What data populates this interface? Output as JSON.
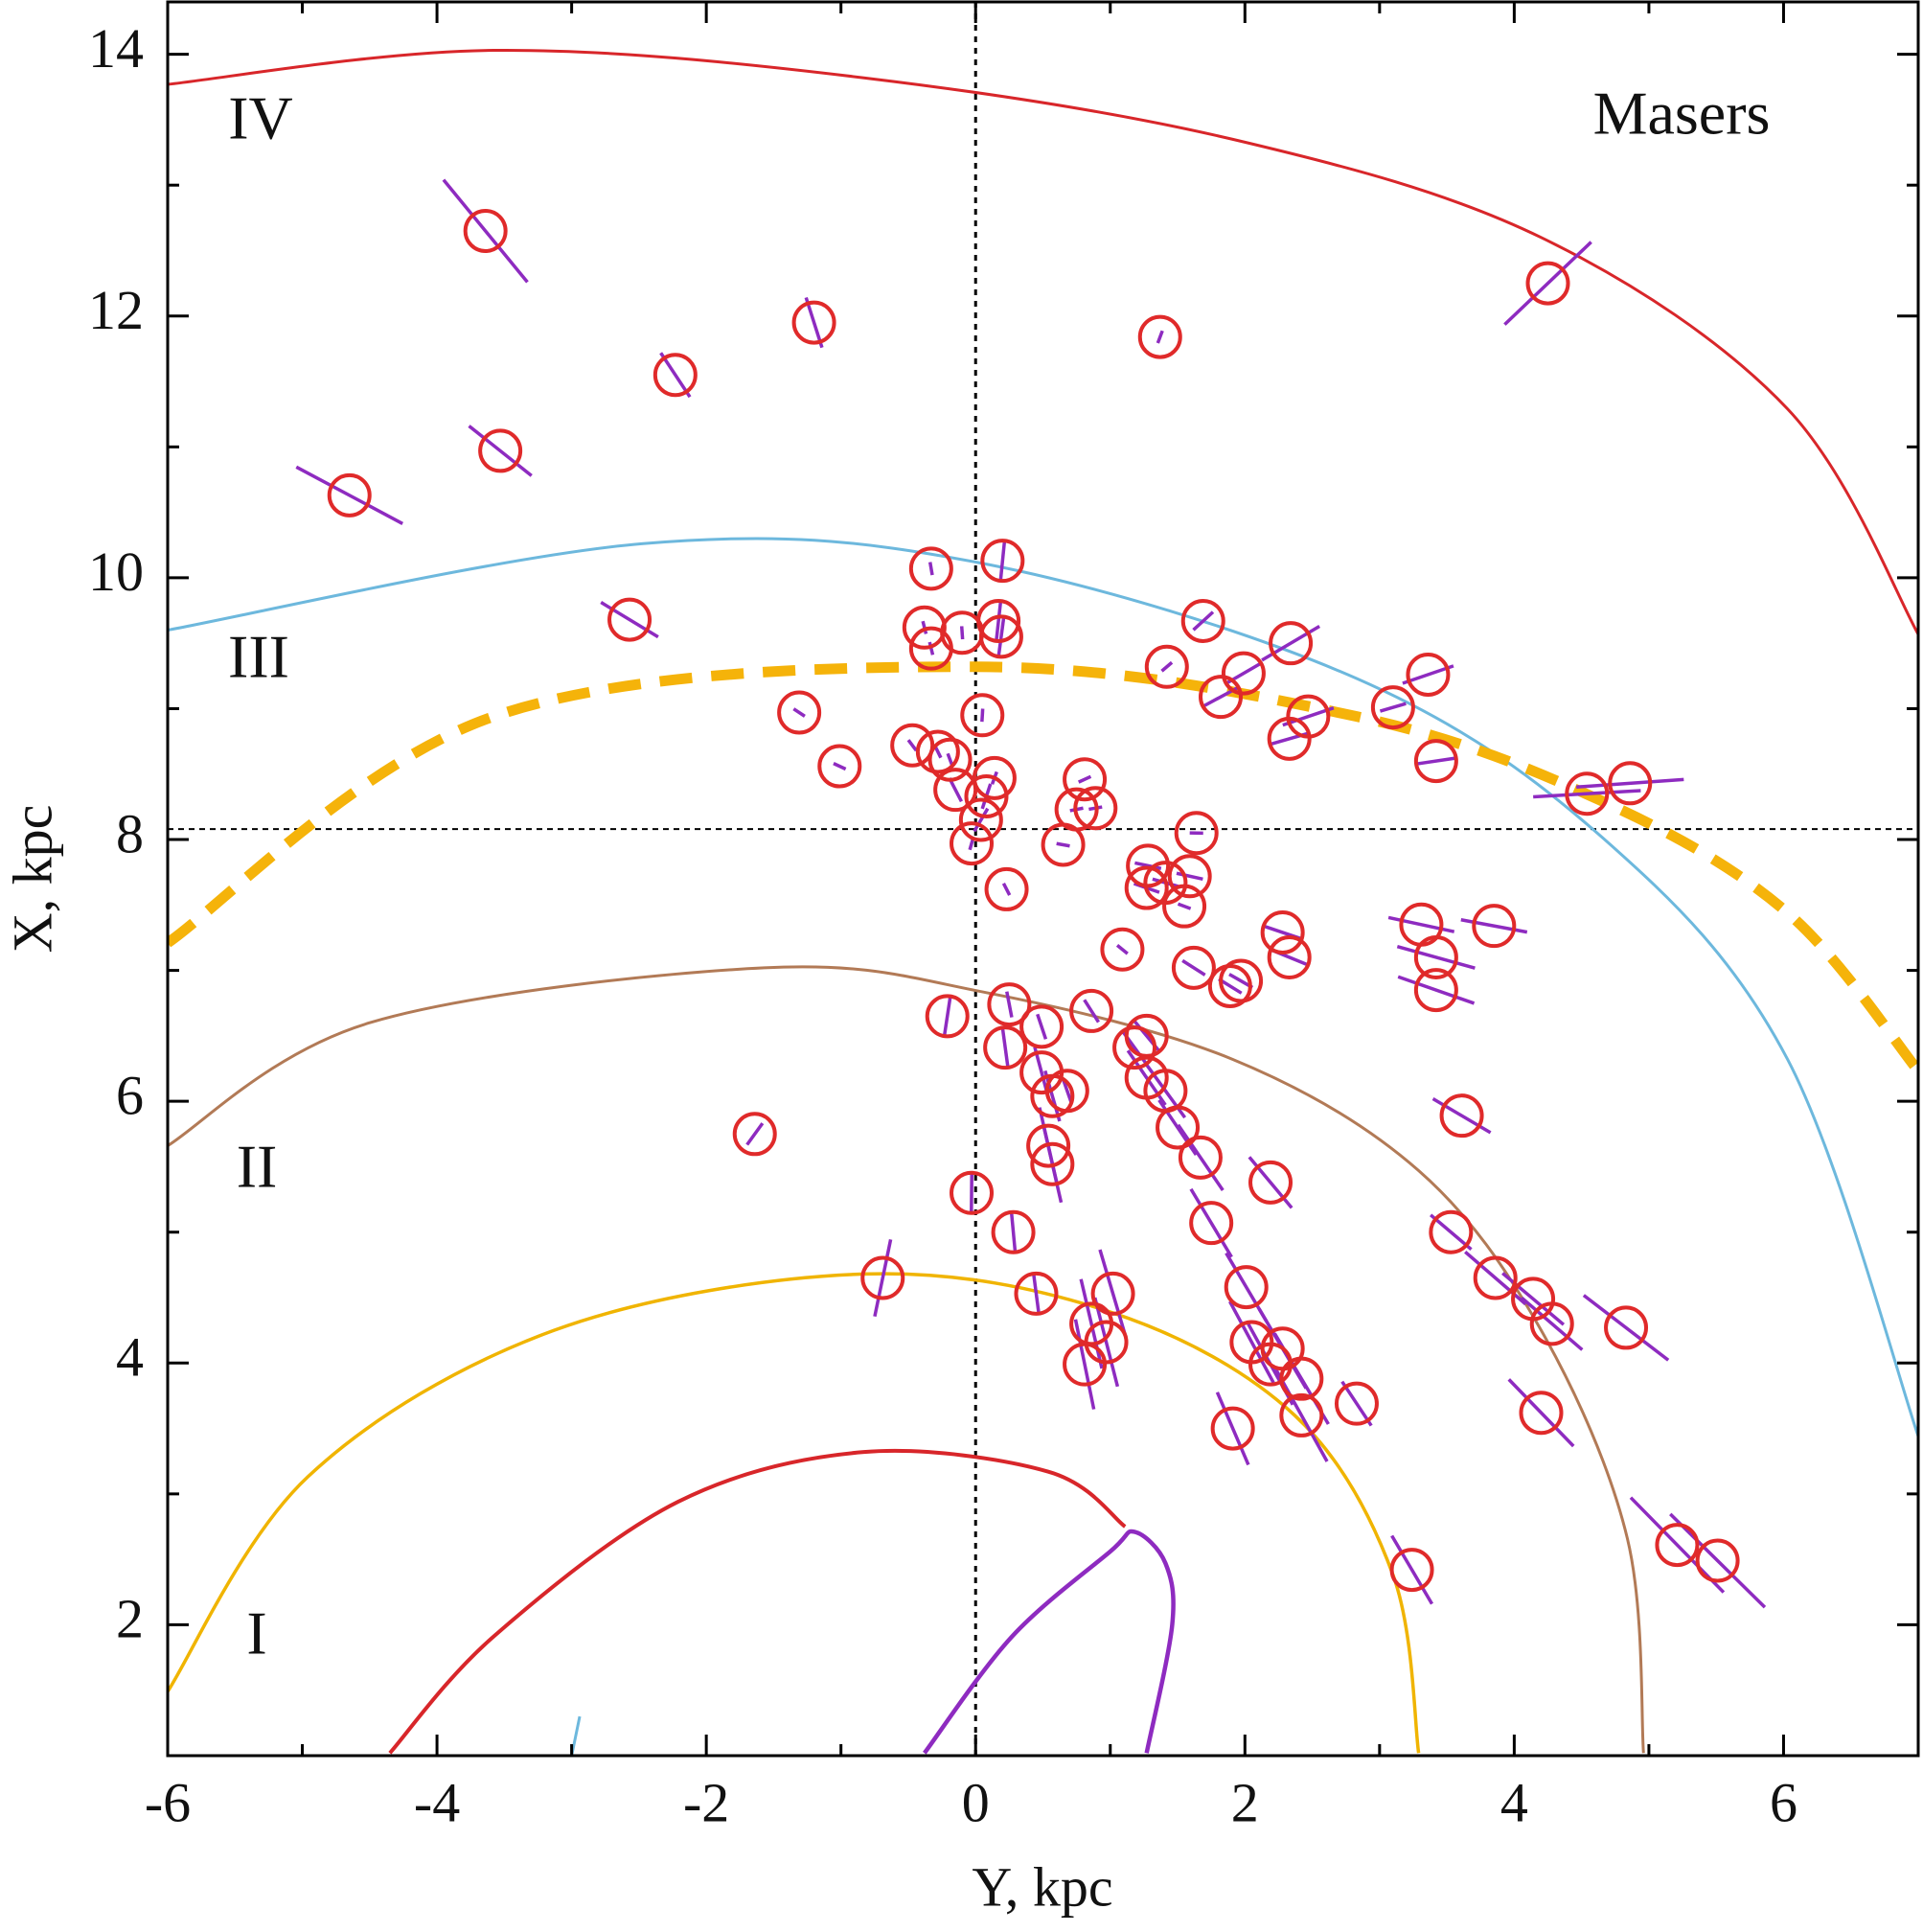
{
  "chart_data": {
    "type": "scatter",
    "xlabel": "Y, kpc",
    "ylabel": "X, kpc",
    "xlim": [
      -6,
      7
    ],
    "ylim": [
      1,
      14.4
    ],
    "xticks": [
      -6,
      -4,
      -2,
      0,
      2,
      4,
      6
    ],
    "yticks": [
      2,
      4,
      6,
      8,
      10,
      12,
      14
    ],
    "xminorticks": [
      -5,
      -3,
      -1,
      1,
      3,
      5,
      7
    ],
    "yminorticks": [
      1,
      3,
      5,
      7,
      9,
      11,
      13
    ],
    "reference_lines": {
      "x": 0,
      "y": 8.08
    },
    "annotations": [
      "Masers",
      "IV",
      "III",
      "II",
      "I"
    ],
    "series": [
      {
        "type": "scatter",
        "color": "#e02a2a",
        "error_color": "#8e2bc0",
        "x": [
          -3.64,
          -1.2,
          -2.23,
          -3.53,
          -4.65,
          1.37,
          4.25,
          -2.57,
          -0.33,
          0.2,
          -0.38,
          -0.33,
          -0.1,
          0.17,
          0.19,
          1.69,
          1.42,
          1.82,
          1.99,
          2.34,
          2.47,
          2.33,
          3.1,
          3.36,
          3.42,
          4.54,
          4.86,
          -1.31,
          -1.01,
          -0.47,
          -0.28,
          0.05,
          -0.19,
          0.14,
          -0.15,
          0.08,
          0.04,
          -0.03,
          0.81,
          0.75,
          0.89,
          0.65,
          1.64,
          1.28,
          1.41,
          1.59,
          1.27,
          1.55,
          0.23,
          1.09,
          1.62,
          1.89,
          1.97,
          2.28,
          2.33,
          3.31,
          3.42,
          3.42,
          3.85,
          -0.21,
          0.25,
          0.22,
          0.49,
          0.49,
          0.57,
          0.68,
          0.86,
          1.27,
          1.18,
          1.27,
          1.41,
          1.5,
          1.67,
          0.54,
          0.57,
          -1.64,
          3.61,
          2.19,
          -0.03,
          0.28,
          1.75,
          3.53,
          -0.69,
          0.45,
          1.02,
          0.86,
          0.97,
          0.81,
          2.01,
          2.05,
          2.19,
          2.28,
          2.42,
          2.42,
          2.83,
          1.91,
          3.86,
          4.14,
          4.28,
          4.83,
          4.2,
          3.24,
          5.21,
          5.51
        ],
        "y": [
          12.65,
          11.95,
          11.55,
          10.97,
          10.63,
          11.84,
          12.25,
          9.68,
          10.07,
          10.13,
          9.62,
          9.46,
          9.58,
          9.67,
          9.55,
          9.67,
          9.32,
          9.09,
          9.27,
          9.5,
          8.94,
          8.77,
          9.01,
          9.26,
          8.6,
          8.35,
          8.43,
          8.97,
          8.56,
          8.72,
          8.67,
          8.95,
          8.61,
          8.47,
          8.38,
          8.33,
          8.15,
          7.97,
          8.46,
          8.23,
          8.24,
          7.96,
          8.05,
          7.8,
          7.67,
          7.72,
          7.63,
          7.49,
          7.62,
          7.16,
          7.02,
          6.88,
          6.92,
          7.29,
          7.1,
          7.35,
          7.1,
          6.85,
          7.34,
          6.65,
          6.74,
          6.41,
          6.57,
          6.22,
          6.04,
          6.08,
          6.69,
          6.5,
          6.41,
          6.18,
          6.08,
          5.8,
          5.57,
          5.66,
          5.52,
          5.75,
          5.89,
          5.38,
          5.3,
          5.0,
          5.07,
          5.0,
          4.65,
          4.53,
          4.53,
          4.3,
          4.16,
          3.99,
          4.58,
          4.16,
          3.99,
          4.11,
          3.88,
          3.6,
          3.69,
          3.5,
          4.65,
          4.49,
          4.3,
          4.27,
          3.62,
          2.42,
          2.61,
          2.49
        ],
        "errors": [
          0.5,
          0.2,
          0.2,
          0.3,
          0.45,
          0.05,
          0.45,
          0.25,
          0.05,
          0.15,
          0.05,
          0.05,
          0.05,
          0.15,
          0.15,
          0.1,
          0.05,
          0.15,
          0.15,
          0.25,
          0.2,
          0.15,
          0.1,
          0.2,
          0.15,
          0.4,
          0.4,
          0.05,
          0.05,
          0.05,
          0.05,
          0.05,
          0.05,
          0.05,
          0.1,
          0.1,
          0.1,
          0.05,
          0.05,
          0.05,
          0.05,
          0.05,
          0.05,
          0.1,
          0.1,
          0.1,
          0.1,
          0.05,
          0.05,
          0.05,
          0.1,
          0.1,
          0.1,
          0.15,
          0.15,
          0.25,
          0.3,
          0.3,
          0.25,
          0.15,
          0.1,
          0.15,
          0.1,
          0.2,
          0.2,
          0.1,
          0.1,
          0.15,
          0.15,
          0.25,
          0.25,
          0.25,
          0.3,
          0.3,
          0.3,
          0.1,
          0.25,
          0.25,
          0.15,
          0.15,
          0.3,
          0.2,
          0.3,
          0.15,
          0.35,
          0.35,
          0.35,
          0.35,
          0.3,
          0.35,
          0.35,
          0.35,
          0.4,
          0.4,
          0.2,
          0.3,
          0.3,
          0.3,
          0.3,
          0.4,
          0.35,
          0.3,
          0.5,
          0.5
        ]
      },
      {
        "type": "line",
        "color": "#d8262a",
        "width": 3,
        "x": [
          -6,
          -3.58,
          -0.83,
          1.91,
          4.2,
          6.03,
          7.01
        ],
        "y": [
          13.77,
          14.03,
          13.82,
          13.35,
          12.6,
          11.29,
          9.55
        ]
      },
      {
        "type": "line",
        "color": "#6db8dd",
        "width": 3,
        "x": [
          -6,
          -2.48,
          0,
          2.83,
          4.66,
          6.03,
          7.01,
          null,
          -2.94,
          -3.0
        ],
        "y": [
          9.6,
          10.26,
          10.12,
          9.23,
          8.01,
          6.32,
          3.41,
          null,
          1.3,
          1.0
        ]
      },
      {
        "type": "line",
        "color": "#f5b30a",
        "width": 11,
        "dashed": true,
        "x": [
          -6,
          -3.58,
          0,
          2.83,
          4.66,
          6.03,
          7.01
        ],
        "y": [
          7.21,
          8.94,
          9.32,
          8.94,
          8.29,
          7.44,
          6.22
        ]
      },
      {
        "type": "line",
        "color": "#b27a56",
        "width": 3,
        "x": [
          -6,
          -4.5,
          -1.57,
          0.08,
          1.91,
          3.29,
          4.2,
          4.84,
          4.96
        ],
        "y": [
          5.66,
          6.6,
          7.02,
          6.83,
          6.32,
          5.47,
          4.25,
          2.66,
          1.02
        ]
      },
      {
        "type": "line",
        "color": "#f0b400",
        "width": 3.5,
        "x": [
          -6,
          -4.96,
          -3.13,
          -0.83,
          1.0,
          2.37,
          3.1,
          3.29
        ],
        "y": [
          1.49,
          3.13,
          4.25,
          4.68,
          4.39,
          3.6,
          2.38,
          1.02
        ]
      },
      {
        "type": "line",
        "color": "#d8262a",
        "width": 4,
        "x": [
          -4.35,
          -3.58,
          -2.21,
          -0.83,
          0.54,
          1.11
        ],
        "y": [
          1.02,
          1.91,
          2.94,
          3.32,
          3.17,
          2.75
        ]
      },
      {
        "type": "line",
        "color": "#8e2bc0",
        "width": 4.5,
        "x": [
          -0.38,
          0.27,
          1.0,
          1.18,
          1.41,
          1.46,
          1.27
        ],
        "y": [
          1.02,
          1.91,
          2.56,
          2.71,
          2.47,
          2.0,
          1.02
        ]
      }
    ]
  }
}
